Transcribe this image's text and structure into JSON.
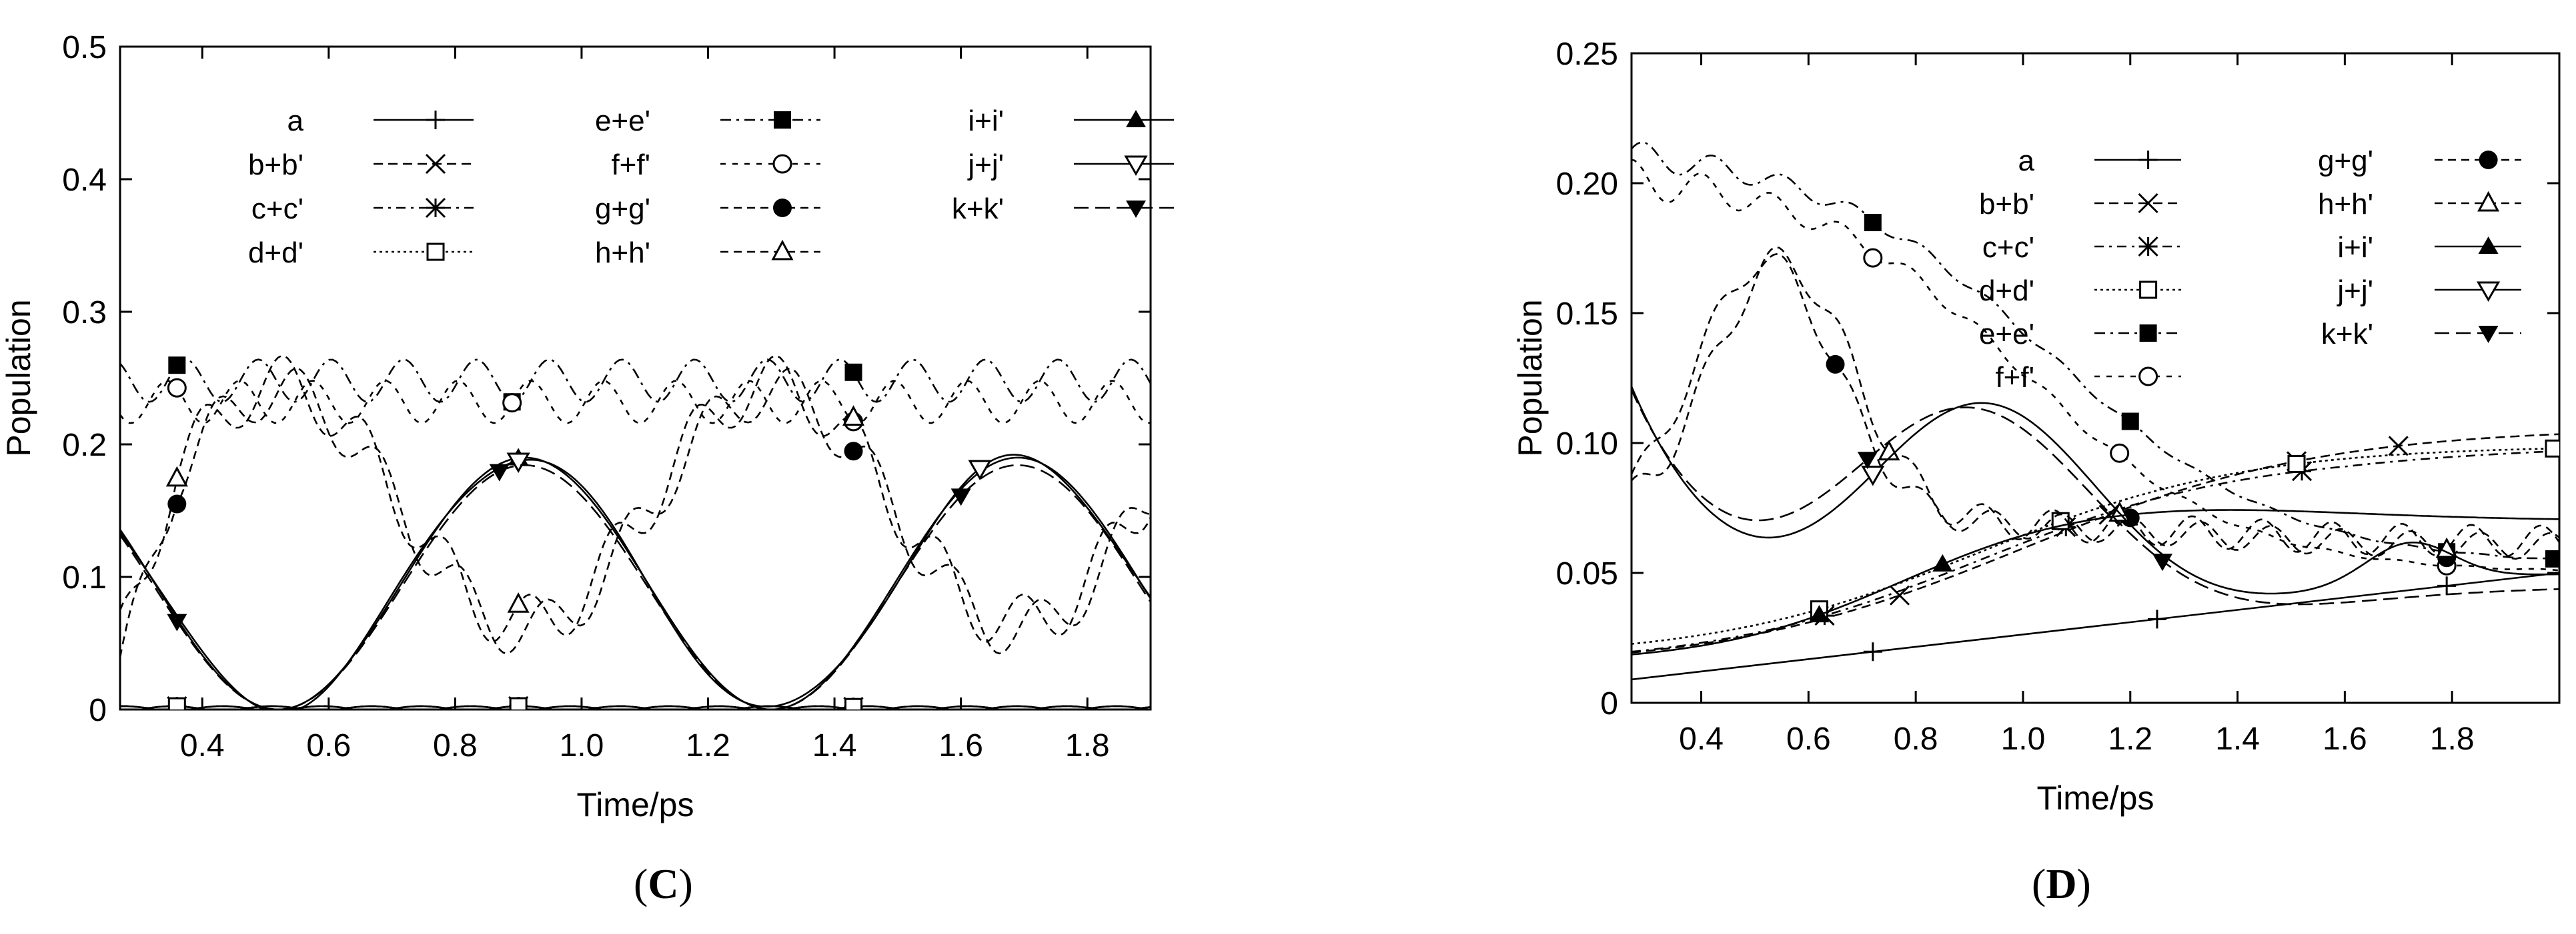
{
  "panels": {
    "C": {
      "label_open": "(",
      "label_letter": "C",
      "label_close": ")"
    },
    "D": {
      "label_open": "(",
      "label_letter": "D",
      "label_close": ")"
    }
  },
  "chart_data": [
    {
      "id": "C",
      "type": "line",
      "xlabel": "Time/ps",
      "ylabel": "Population",
      "xlim": [
        0.27,
        1.9
      ],
      "ylim": [
        0,
        0.5
      ],
      "xticks": [
        0.4,
        0.6,
        0.8,
        1.0,
        1.2,
        1.4,
        1.6,
        1.8
      ],
      "xtick_labels": [
        "0.4",
        "0.6",
        "0.8",
        "1.0",
        "1.2",
        "1.4",
        "1.6",
        "1.8"
      ],
      "yticks": [
        0,
        0.1,
        0.2,
        0.3,
        0.4,
        0.5
      ],
      "ytick_labels": [
        "0",
        "0.1",
        "0.2",
        "0.3",
        "0.4",
        "0.5"
      ],
      "grid": false,
      "legend_position": "top",
      "legend_columns": 3,
      "series": [
        {
          "name": "a",
          "dash": "",
          "marker": "plus",
          "fn": "zeroC",
          "markers_x": [
            0.36,
            0.9,
            1.43
          ]
        },
        {
          "name": "b+b'",
          "dash": "14 8",
          "marker": "x",
          "fn": "zeroC",
          "markers_x": [
            0.36,
            0.9,
            1.43
          ]
        },
        {
          "name": "c+c'",
          "dash": "14 8 4 8",
          "marker": "star",
          "fn": "zeroC",
          "markers_x": [
            0.36,
            0.9,
            1.43
          ]
        },
        {
          "name": "d+d'",
          "dash": "4 5",
          "marker": "open-square",
          "fn": "zeroC",
          "markers_x": [
            0.36,
            0.9,
            1.43
          ]
        },
        {
          "name": "e+e'",
          "dash": "16 8 4 8",
          "marker": "filled-square",
          "fn": "eC",
          "markers_x": [
            0.36,
            0.89,
            1.43
          ]
        },
        {
          "name": "f+f'",
          "dash": "8 10",
          "marker": "open-circle",
          "fn": "fC",
          "markers_x": [
            0.36,
            0.89,
            1.43
          ]
        },
        {
          "name": "g+g'",
          "dash": "12 8",
          "marker": "filled-circle",
          "fn": "gC",
          "markers_x": [
            0.36,
            1.43
          ]
        },
        {
          "name": "h+h'",
          "dash": "12 8",
          "marker": "open-triangle",
          "fn": "hC",
          "markers_x": [
            0.36,
            0.9,
            1.43
          ]
        },
        {
          "name": "i+i'",
          "dash": "",
          "marker": "filled-triangle",
          "fn": "iC",
          "markers_x": [
            0.9
          ]
        },
        {
          "name": "j+j'",
          "dash": "",
          "marker": "open-triangle-down",
          "fn": "jC",
          "markers_x": [
            0.9,
            1.63
          ]
        },
        {
          "name": "k+k'",
          "dash": "22 10",
          "marker": "filled-triangle-down",
          "fn": "kC",
          "markers_x": [
            0.36,
            0.87,
            1.6
          ]
        }
      ]
    },
    {
      "id": "D",
      "type": "line",
      "xlabel": "Time/ps",
      "ylabel": "Population",
      "xlim": [
        0.27,
        2.0
      ],
      "ylim": [
        0,
        0.25
      ],
      "xticks": [
        0.4,
        0.6,
        0.8,
        1.0,
        1.2,
        1.4,
        1.6,
        1.8
      ],
      "xtick_labels": [
        "0.4",
        "0.6",
        "0.8",
        "1.0",
        "1.2",
        "1.4",
        "1.6",
        "1.8"
      ],
      "yticks": [
        0,
        0.05,
        0.1,
        0.15,
        0.2,
        0.25
      ],
      "ytick_labels": [
        "0",
        "0.05",
        "0.10",
        "0.15",
        "0.20",
        "0.25"
      ],
      "grid": false,
      "legend_position": "top-right",
      "legend_columns": 2,
      "series": [
        {
          "name": "a",
          "dash": "",
          "marker": "plus",
          "fn": "aD",
          "markers_x": [
            0.72,
            1.25,
            1.79,
            2.0
          ]
        },
        {
          "name": "b+b'",
          "dash": "14 8",
          "marker": "x",
          "fn": "bD",
          "markers_x": [
            0.77,
            1.16,
            1.51,
            1.7
          ]
        },
        {
          "name": "c+c'",
          "dash": "14 8 4 8",
          "marker": "star",
          "fn": "cD",
          "markers_x": [
            0.63,
            1.08,
            1.52
          ]
        },
        {
          "name": "d+d'",
          "dash": "4 5",
          "marker": "open-square",
          "fn": "dD",
          "markers_x": [
            0.62,
            1.07,
            1.51,
            1.99
          ]
        },
        {
          "name": "e+e'",
          "dash": "16 8 4 8",
          "marker": "filled-square",
          "fn": "eD",
          "markers_x": [
            0.72,
            1.2,
            1.79,
            1.99
          ]
        },
        {
          "name": "f+f'",
          "dash": "8 10",
          "marker": "open-circle",
          "fn": "fD",
          "markers_x": [
            0.72,
            1.18,
            1.79
          ]
        },
        {
          "name": "g+g'",
          "dash": "12 8",
          "marker": "filled-circle",
          "fn": "gD",
          "markers_x": [
            0.65,
            1.2,
            1.79
          ]
        },
        {
          "name": "h+h'",
          "dash": "12 8",
          "marker": "open-triangle",
          "fn": "hD",
          "markers_x": [
            0.75,
            1.18,
            1.79
          ]
        },
        {
          "name": "i+i'",
          "dash": "",
          "marker": "filled-triangle",
          "fn": "iD",
          "markers_x": [
            0.62,
            0.85
          ]
        },
        {
          "name": "j+j'",
          "dash": "",
          "marker": "open-triangle-down",
          "fn": "jD",
          "markers_x": [
            0.72
          ]
        },
        {
          "name": "k+k'",
          "dash": "22 10",
          "marker": "filled-triangle-down",
          "fn": "kD",
          "markers_x": [
            0.71,
            1.26
          ]
        }
      ]
    }
  ]
}
